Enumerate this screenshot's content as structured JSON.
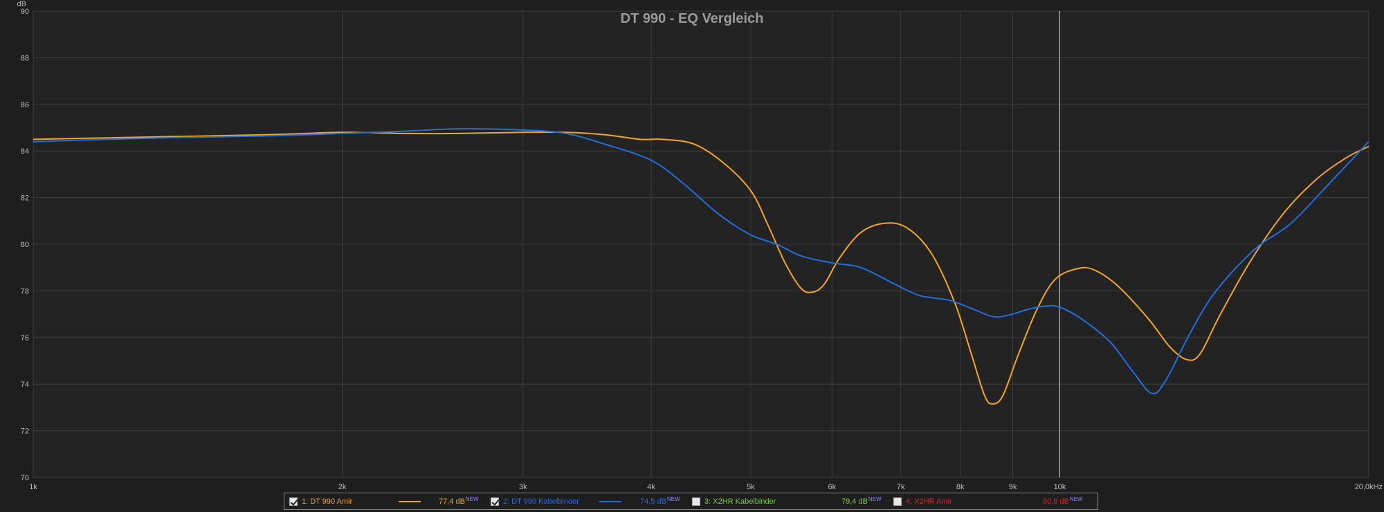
{
  "chart_data": {
    "type": "line",
    "title": "DT 990 - EQ Vergleich",
    "ylabel": "dB",
    "xscale": "log",
    "xlim": [
      1000,
      20000
    ],
    "ylim": [
      70,
      90
    ],
    "grid": true,
    "x_ticks": [
      {
        "value": 1000,
        "label": "1k"
      },
      {
        "value": 2000,
        "label": "2k"
      },
      {
        "value": 3000,
        "label": "3k"
      },
      {
        "value": 4000,
        "label": "4k"
      },
      {
        "value": 5000,
        "label": "5k"
      },
      {
        "value": 6000,
        "label": "6k"
      },
      {
        "value": 7000,
        "label": "7k"
      },
      {
        "value": 8000,
        "label": "8k"
      },
      {
        "value": 9000,
        "label": "9k"
      },
      {
        "value": 10000,
        "label": "10k"
      },
      {
        "value": 20000,
        "label": "20,0kHz"
      }
    ],
    "y_ticks": [
      {
        "value": 70,
        "label": "70"
      },
      {
        "value": 72,
        "label": "72"
      },
      {
        "value": 74,
        "label": "74"
      },
      {
        "value": 76,
        "label": "76"
      },
      {
        "value": 78,
        "label": "78"
      },
      {
        "value": 80,
        "label": "80"
      },
      {
        "value": 82,
        "label": "82"
      },
      {
        "value": 84,
        "label": "84"
      },
      {
        "value": 86,
        "label": "86"
      },
      {
        "value": 88,
        "label": "88"
      },
      {
        "value": 90,
        "label": "90"
      }
    ],
    "cursor_x": 10000,
    "series": [
      {
        "name": "1: DT 990 Amir",
        "color": "#f5a623",
        "points": [
          [
            1000,
            84.5
          ],
          [
            1300,
            84.6
          ],
          [
            1700,
            84.7
          ],
          [
            2000,
            84.8
          ],
          [
            2300,
            84.75
          ],
          [
            2600,
            84.75
          ],
          [
            3000,
            84.8
          ],
          [
            3300,
            84.8
          ],
          [
            3600,
            84.7
          ],
          [
            3900,
            84.5
          ],
          [
            4100,
            84.5
          ],
          [
            4400,
            84.3
          ],
          [
            4700,
            83.5
          ],
          [
            5000,
            82.3
          ],
          [
            5200,
            80.8
          ],
          [
            5400,
            79.2
          ],
          [
            5600,
            78.1
          ],
          [
            5750,
            77.95
          ],
          [
            5900,
            78.3
          ],
          [
            6100,
            79.4
          ],
          [
            6400,
            80.5
          ],
          [
            6750,
            80.9
          ],
          [
            7100,
            80.7
          ],
          [
            7500,
            79.6
          ],
          [
            7900,
            77.5
          ],
          [
            8200,
            75.3
          ],
          [
            8450,
            73.5
          ],
          [
            8600,
            73.15
          ],
          [
            8800,
            73.5
          ],
          [
            9100,
            75.2
          ],
          [
            9500,
            77.2
          ],
          [
            9900,
            78.5
          ],
          [
            10400,
            78.95
          ],
          [
            10800,
            78.9
          ],
          [
            11400,
            78.2
          ],
          [
            12200,
            76.8
          ],
          [
            12800,
            75.6
          ],
          [
            13300,
            75.05
          ],
          [
            13700,
            75.3
          ],
          [
            14300,
            76.9
          ],
          [
            15300,
            79.2
          ],
          [
            16500,
            81.3
          ],
          [
            17800,
            82.8
          ],
          [
            19000,
            83.7
          ],
          [
            20000,
            84.2
          ]
        ]
      },
      {
        "name": "2: DT 990 Kabelbinder",
        "color": "#1f6fe0",
        "points": [
          [
            1000,
            84.4
          ],
          [
            1300,
            84.55
          ],
          [
            1700,
            84.65
          ],
          [
            2000,
            84.75
          ],
          [
            2300,
            84.85
          ],
          [
            2600,
            84.95
          ],
          [
            3000,
            84.9
          ],
          [
            3300,
            84.75
          ],
          [
            3600,
            84.3
          ],
          [
            4000,
            83.6
          ],
          [
            4300,
            82.6
          ],
          [
            4650,
            81.3
          ],
          [
            5000,
            80.4
          ],
          [
            5300,
            80.0
          ],
          [
            5600,
            79.5
          ],
          [
            6000,
            79.2
          ],
          [
            6400,
            79.0
          ],
          [
            6900,
            78.3
          ],
          [
            7300,
            77.8
          ],
          [
            7800,
            77.6
          ],
          [
            8200,
            77.25
          ],
          [
            8600,
            76.9
          ],
          [
            8900,
            76.95
          ],
          [
            9300,
            77.2
          ],
          [
            9700,
            77.35
          ],
          [
            10000,
            77.3
          ],
          [
            10500,
            76.8
          ],
          [
            11200,
            75.8
          ],
          [
            11800,
            74.5
          ],
          [
            12300,
            73.6
          ],
          [
            12700,
            74.2
          ],
          [
            13400,
            76.2
          ],
          [
            14200,
            78.0
          ],
          [
            15500,
            79.8
          ],
          [
            16800,
            80.9
          ],
          [
            18300,
            82.6
          ],
          [
            20000,
            84.4
          ]
        ]
      }
    ]
  },
  "legend": [
    {
      "label": "1: DT 990 Amir",
      "checked": true,
      "color": "#f5a623",
      "level": "77,4 dB",
      "new": "NEW",
      "show_swatch": true
    },
    {
      "label": "2: DT 990 Kabelbinder",
      "checked": true,
      "color": "#1f6fe0",
      "level": "74,5 dB",
      "new": "NEW",
      "show_swatch": true
    },
    {
      "label": "3: X2HR Kabelbinder",
      "checked": false,
      "color": "#7ad03a",
      "level": "79,4 dB",
      "new": "NEW",
      "show_swatch": false
    },
    {
      "label": "4: X2HR Amir",
      "checked": false,
      "color": "#e0202a",
      "level": "80,8 dB",
      "new": "NEW",
      "show_swatch": false
    }
  ]
}
